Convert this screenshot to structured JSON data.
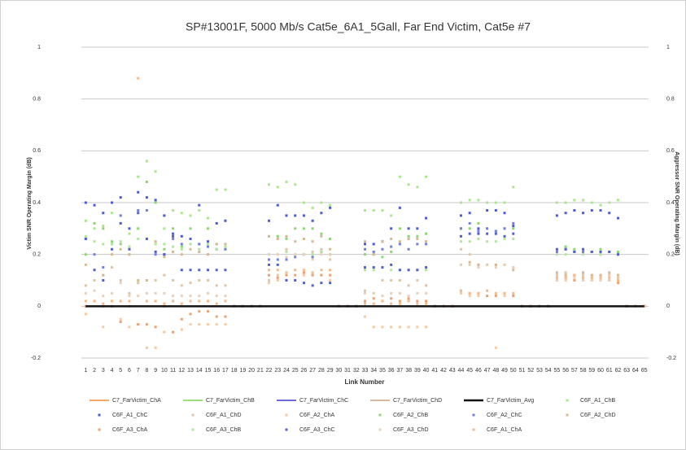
{
  "chart_data": {
    "type": "scatter",
    "title": "SP#13001F, 5000 Mb/s Cat5e_6A1_5Gall, Far End Victim, Cat5e #7",
    "x_label": "Link Number",
    "y_label": "Victim SNR Operating Margin (dB)",
    "y2_label": "Aggressor SNR Operating Margin (dB)",
    "categories": [
      1,
      2,
      3,
      4,
      5,
      6,
      7,
      8,
      9,
      10,
      11,
      12,
      13,
      14,
      15,
      16,
      17,
      18,
      19,
      20,
      21,
      22,
      23,
      24,
      25,
      26,
      27,
      28,
      29,
      30,
      31,
      32,
      33,
      34,
      35,
      36,
      37,
      38,
      39,
      40,
      41,
      42,
      43,
      44,
      45,
      46,
      47,
      48,
      49,
      50,
      51,
      52,
      53,
      54,
      55,
      56,
      57,
      58,
      59,
      60,
      61,
      62,
      63,
      64,
      65
    ],
    "ylim": [
      -0.2,
      1
    ],
    "yticks": [
      -0.2,
      0,
      0.2,
      0.4,
      0.6,
      0.8,
      1
    ],
    "y2lim": [
      -0.2,
      1
    ],
    "y2ticks": [
      -0.2,
      0,
      0.2,
      0.4,
      0.6,
      0.8,
      1
    ],
    "grid": true,
    "series": [
      {
        "name": "C7_FarVictim_ChA",
        "color": "#f28c3a",
        "style": "line",
        "values": [
          0,
          0,
          0,
          0,
          0,
          0,
          0,
          0,
          0,
          0,
          0,
          0,
          0,
          0,
          0,
          0,
          0,
          0,
          0,
          0,
          0,
          0,
          0,
          0,
          0,
          0,
          0,
          0,
          0,
          0,
          0,
          0,
          0,
          0,
          0,
          0,
          0,
          0,
          0,
          0,
          0,
          0,
          0,
          0,
          0,
          0,
          0,
          0,
          0,
          0,
          0,
          0,
          0,
          0,
          0,
          0,
          0,
          0,
          0,
          0,
          0,
          0,
          0,
          0,
          0
        ]
      },
      {
        "name": "C7_FarVictim_ChB",
        "color": "#7fd44c",
        "style": "line",
        "values": [
          0,
          0,
          0,
          0,
          0,
          0,
          0,
          0,
          0,
          0,
          0,
          0,
          0,
          0,
          0,
          0,
          0,
          0,
          0,
          0,
          0,
          0,
          0,
          0,
          0,
          0,
          0,
          0,
          0,
          0,
          0,
          0,
          0,
          0,
          0,
          0,
          0,
          0,
          0,
          0,
          0,
          0,
          0,
          0,
          0,
          0,
          0,
          0,
          0,
          0,
          0,
          0,
          0,
          0,
          0,
          0,
          0,
          0,
          0,
          0,
          0,
          0,
          0,
          0,
          0
        ]
      },
      {
        "name": "C7_FarVictim_ChC",
        "color": "#3a3ad0",
        "style": "line",
        "values": [
          0,
          0,
          0,
          0,
          0,
          0,
          0,
          0,
          0,
          0,
          0,
          0,
          0,
          0,
          0,
          0,
          0,
          0,
          0,
          0,
          0,
          0,
          0,
          0,
          0,
          0,
          0,
          0,
          0,
          0,
          0,
          0,
          0,
          0,
          0,
          0,
          0,
          0,
          0,
          0,
          0,
          0,
          0,
          0,
          0,
          0,
          0,
          0,
          0,
          0,
          0,
          0,
          0,
          0,
          0,
          0,
          0,
          0,
          0,
          0,
          0,
          0,
          0,
          0,
          0
        ]
      },
      {
        "name": "C7_FarVictim_ChD",
        "color": "#c8a07a",
        "style": "line",
        "values": [
          0,
          0,
          0,
          0,
          0,
          0,
          0,
          0,
          0,
          0,
          0,
          0,
          0,
          0,
          0,
          0,
          0,
          0,
          0,
          0,
          0,
          0,
          0,
          0,
          0,
          0,
          0,
          0,
          0,
          0,
          0,
          0,
          0,
          0,
          0,
          0,
          0,
          0,
          0,
          0,
          0,
          0,
          0,
          0,
          0,
          0,
          0,
          0,
          0,
          0,
          0,
          0,
          0,
          0,
          0,
          0,
          0,
          0,
          0,
          0,
          0,
          0,
          0,
          0,
          0
        ]
      },
      {
        "name": "C7_FarVictim_Avg",
        "color": "#111111",
        "style": "line",
        "values": [
          0,
          0,
          0,
          0,
          0,
          0,
          0,
          0,
          0,
          0,
          0,
          0,
          0,
          0,
          0,
          0,
          0,
          0,
          0,
          0,
          0,
          0,
          0,
          0,
          0,
          0,
          0,
          0,
          0,
          0,
          0,
          0,
          0,
          0,
          0,
          0,
          0,
          0,
          0,
          0,
          0,
          0,
          0,
          0,
          0,
          0,
          0,
          0,
          0,
          0,
          0,
          0,
          0,
          0,
          0,
          0,
          0,
          0,
          0,
          0,
          0,
          0,
          0,
          0,
          0
        ]
      },
      {
        "name": "C6F_A1_ChB",
        "color": "#a8e88a",
        "style": "marker",
        "values": [
          0.33,
          0.3,
          0.31,
          0.36,
          0.32,
          0.28,
          0.5,
          0.56,
          0.52,
          0.3,
          0.37,
          0.36,
          0.35,
          0.37,
          0.34,
          0.45,
          0.45,
          0,
          0,
          0,
          0,
          0.47,
          0.46,
          0.48,
          0.47,
          0.4,
          0.38,
          0.4,
          0.39,
          0,
          0,
          0,
          0.37,
          0.37,
          0.37,
          0.35,
          0.5,
          0.47,
          0.46,
          0.5,
          0,
          0,
          0,
          0.4,
          0.41,
          0.41,
          0.4,
          0.4,
          0.4,
          0.46,
          0,
          0,
          0,
          0,
          0.4,
          0.4,
          0.41,
          0.41,
          0.4,
          0.39,
          0.4,
          0.41,
          0,
          0,
          0
        ]
      },
      {
        "name": "C6F_A1_ChC",
        "color": "#4a5ad8",
        "style": "marker",
        "values": [
          0.4,
          0.39,
          0.36,
          0.4,
          0.42,
          0.3,
          0.44,
          0.42,
          0.41,
          0.35,
          0.28,
          0.27,
          0.26,
          0.39,
          0.25,
          0.32,
          0.33,
          0,
          0,
          0,
          0,
          0.33,
          0.39,
          0.35,
          0.35,
          0.35,
          0.33,
          0.36,
          0.38,
          0,
          0,
          0,
          0.24,
          0.24,
          0.25,
          0.3,
          0.38,
          0.3,
          0.3,
          0.34,
          0,
          0,
          0,
          0.35,
          0.36,
          0.3,
          0.37,
          0.37,
          0.36,
          0.31,
          0,
          0,
          0,
          0,
          0.35,
          0.36,
          0.37,
          0.36,
          0.37,
          0.37,
          0.36,
          0.34,
          0,
          0,
          0
        ]
      },
      {
        "name": "C6F_A1_ChD",
        "color": "#e0c4a8",
        "style": "marker",
        "values": [
          0.08,
          0.1,
          0.12,
          0.15,
          0.1,
          0.05,
          0.09,
          0.1,
          0.1,
          0.12,
          0.1,
          0.08,
          0.09,
          0.1,
          0.1,
          0.08,
          0.08,
          0,
          0,
          0,
          0,
          0.1,
          0.12,
          0.22,
          0.2,
          0.2,
          0.21,
          0.22,
          0.18,
          0,
          0,
          0,
          0.06,
          0.05,
          0.1,
          0.1,
          0.1,
          0.08,
          0.1,
          0.08,
          0,
          0,
          0,
          0.22,
          0.2,
          0.16,
          0.16,
          0.16,
          0.16,
          0.15,
          0,
          0,
          0,
          0,
          0.12,
          0.13,
          0.12,
          0.12,
          0.11,
          0.12,
          0.12,
          0.11,
          0,
          0,
          0
        ]
      },
      {
        "name": "C6F_A2_ChA",
        "color": "#f8c8a0",
        "style": "marker",
        "values": [
          -0.03,
          0.02,
          -0.08,
          0,
          -0.05,
          -0.08,
          -0.07,
          -0.16,
          -0.16,
          -0.1,
          -0.1,
          -0.09,
          -0.07,
          -0.07,
          -0.07,
          -0.07,
          -0.07,
          0,
          0,
          0,
          0,
          0.09,
          0.1,
          0.1,
          0.1,
          0.12,
          0.12,
          0.12,
          0.1,
          0,
          0,
          0,
          -0.04,
          -0.08,
          -0.08,
          -0.08,
          -0.08,
          -0.08,
          -0.08,
          -0.08,
          0,
          0,
          0,
          0.05,
          0.04,
          0.04,
          0.04,
          -0.16,
          0.04,
          0.04,
          0,
          0,
          0,
          0,
          0.11,
          0.12,
          0.12,
          0.11,
          0.12,
          0.11,
          0.12,
          0.1,
          0,
          0,
          0
        ]
      },
      {
        "name": "C6F_A2_ChB",
        "color": "#8ad870",
        "style": "marker",
        "values": [
          0.2,
          0.32,
          0.3,
          0.25,
          0.24,
          0.2,
          0.3,
          0.48,
          0.4,
          0.22,
          0.3,
          0.23,
          0.3,
          0.24,
          0.3,
          0.24,
          0.22,
          0,
          0,
          0,
          0,
          0.27,
          0.27,
          0.26,
          0.3,
          0.3,
          0.3,
          0.28,
          0.26,
          0,
          0,
          0,
          0.2,
          0.2,
          0.19,
          0.21,
          0.3,
          0.27,
          0.27,
          0.28,
          0,
          0,
          0,
          0.3,
          0.3,
          0.32,
          0.3,
          0.29,
          0.3,
          0.3,
          0,
          0,
          0,
          0,
          0.22,
          0.23,
          0.22,
          0.22,
          0.21,
          0.22,
          0.21,
          0.21,
          0,
          0,
          0
        ]
      },
      {
        "name": "C6F_A2_ChC",
        "color": "#7080e0",
        "style": "marker",
        "values": [
          0.26,
          0.2,
          0.15,
          0.24,
          0.35,
          0.23,
          0.37,
          0.37,
          0.2,
          0.2,
          0.26,
          0.24,
          0.24,
          0.24,
          0.23,
          0.22,
          0.22,
          0,
          0,
          0,
          0,
          0.18,
          0.18,
          0.18,
          0.19,
          0.2,
          0.19,
          0.21,
          0.2,
          0,
          0,
          0,
          0.22,
          0.21,
          0.22,
          0.23,
          0.24,
          0.22,
          0.24,
          0.24,
          0,
          0,
          0,
          0.3,
          0.32,
          0.29,
          0.3,
          0.29,
          0.3,
          0.32,
          0,
          0,
          0,
          0,
          0.21,
          0.22,
          0.21,
          0.21,
          0.21,
          0.2,
          0.21,
          0.2,
          0,
          0,
          0
        ]
      },
      {
        "name": "C6F_A2_ChD",
        "color": "#d8b890",
        "style": "marker",
        "values": [
          0.16,
          0.14,
          0.12,
          0.2,
          0.22,
          0.2,
          0.1,
          0.1,
          0.25,
          0.19,
          0.21,
          0.2,
          0.22,
          0.21,
          0.2,
          0.24,
          0.24,
          0,
          0,
          0,
          0,
          0.27,
          0.26,
          0.27,
          0.25,
          0.26,
          0.25,
          0.27,
          0.22,
          0,
          0,
          0,
          0.25,
          0.2,
          0.25,
          0.26,
          0.25,
          0.26,
          0.26,
          0.25,
          0,
          0,
          0,
          0.16,
          0.17,
          0.16,
          0.16,
          0.16,
          0.16,
          0.14,
          0,
          0,
          0,
          0,
          0.13,
          0.12,
          0.12,
          0.13,
          0.12,
          0.12,
          0.13,
          0.12,
          0,
          0,
          0
        ]
      },
      {
        "name": "C6F_A3_ChA",
        "color": "#f0a070",
        "style": "marker",
        "values": [
          0,
          0.02,
          0,
          0,
          -0.06,
          0,
          -0.07,
          -0.07,
          -0.08,
          0,
          -0.1,
          -0.05,
          -0.03,
          -0.02,
          -0.02,
          -0.04,
          -0.04,
          0,
          0,
          0,
          0,
          0.12,
          0.11,
          0.12,
          0.12,
          0.13,
          0.12,
          0.12,
          0.12,
          0,
          0,
          0,
          0.02,
          0.03,
          0.02,
          0.03,
          0.02,
          0.03,
          0.02,
          0.02,
          0,
          0,
          0,
          0.06,
          0.05,
          0.05,
          0.04,
          0.04,
          0.05,
          0.04,
          0,
          0,
          0,
          0,
          0.1,
          0.11,
          0.1,
          0.1,
          0.1,
          0.11,
          0.1,
          0.09,
          0,
          0,
          0
        ]
      },
      {
        "name": "C6F_A3_ChB",
        "color": "#b0e898",
        "style": "marker",
        "values": [
          0.27,
          0.25,
          0.24,
          0.24,
          0.25,
          0.23,
          0.26,
          0.26,
          0.24,
          0.24,
          0.23,
          0.22,
          0.24,
          0.22,
          0.24,
          0.22,
          0.23,
          0,
          0,
          0,
          0,
          0.2,
          0.2,
          0.21,
          0.2,
          0.2,
          0.2,
          0.21,
          0.2,
          0,
          0,
          0,
          0.14,
          0.14,
          0.15,
          0.14,
          0.14,
          0.14,
          0.14,
          0.14,
          0,
          0,
          0,
          0.25,
          0.25,
          0.26,
          0.25,
          0.25,
          0.26,
          0.26,
          0,
          0,
          0,
          0,
          0.2,
          0.2,
          0.21,
          0.2,
          0.21,
          0.2,
          0.21,
          0.2,
          0,
          0,
          0
        ]
      },
      {
        "name": "C6F_A3_ChC",
        "color": "#5060d0",
        "style": "marker",
        "values": [
          0.26,
          0.14,
          0.1,
          0.22,
          0.32,
          0.22,
          0.36,
          0.26,
          0.21,
          0.2,
          0.27,
          0.14,
          0.14,
          0.14,
          0.14,
          0.14,
          0.14,
          0,
          0,
          0,
          0,
          0.16,
          0.16,
          0.1,
          0.1,
          0.09,
          0.08,
          0.09,
          0.09,
          0,
          0,
          0,
          0.15,
          0.15,
          0.15,
          0.16,
          0.14,
          0.14,
          0.14,
          0.15,
          0,
          0,
          0,
          0.27,
          0.28,
          0.28,
          0.28,
          0.28,
          0.27,
          0.28,
          0,
          0,
          0,
          0,
          0.22,
          0.22,
          0.21,
          0.22,
          0.21,
          0.21,
          0.21,
          0.2,
          0,
          0,
          0
        ]
      },
      {
        "name": "C6F_A3_ChD",
        "color": "#e8d0b8",
        "style": "marker",
        "values": [
          0.05,
          0.06,
          0.04,
          0.05,
          0.09,
          0.04,
          0.04,
          0.05,
          0.05,
          0.05,
          0.04,
          0.04,
          0.04,
          0.04,
          0.05,
          0.04,
          0.04,
          0,
          0,
          0,
          0,
          0.2,
          0.2,
          0.19,
          0.2,
          0.2,
          0.18,
          0.2,
          0.2,
          0,
          0,
          0,
          0.05,
          0.05,
          0.04,
          0.05,
          0.05,
          0.04,
          0.05,
          0.05,
          0,
          0,
          0,
          0.16,
          0.16,
          0.15,
          0.16,
          0.15,
          0.16,
          0.15,
          0,
          0,
          0,
          0,
          0.1,
          0.1,
          0.11,
          0.1,
          0.1,
          0.1,
          0.1,
          0.1,
          0,
          0,
          0
        ]
      },
      {
        "name": "C6F_A1_ChA",
        "color": "#f8b888",
        "style": "marker",
        "values": [
          0.02,
          0.02,
          0.01,
          0.02,
          0.02,
          0.02,
          0.88,
          0.02,
          0.02,
          0.01,
          0.02,
          0.01,
          0.02,
          0.02,
          0.02,
          0.01,
          0.02,
          0,
          0,
          0,
          0,
          0.14,
          0.14,
          0.13,
          0.14,
          0.14,
          0.13,
          0.14,
          0.14,
          0,
          0,
          0,
          0.01,
          0.01,
          0.02,
          0.01,
          0.01,
          0.02,
          0.01,
          0.01,
          0,
          0,
          0,
          0.06,
          0.05,
          0.05,
          0.06,
          0.05,
          0.05,
          0.05,
          0,
          0,
          0,
          0,
          0.11,
          0.11,
          0.12,
          0.11,
          0.11,
          0.11,
          0.11,
          0.1,
          0,
          0,
          0
        ]
      }
    ]
  }
}
